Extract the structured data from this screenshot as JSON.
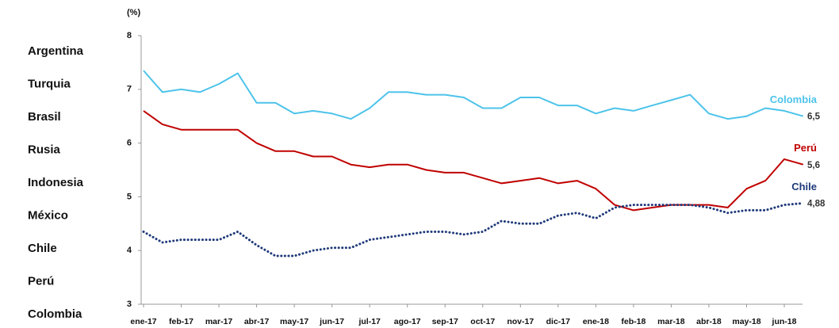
{
  "chart_data": {
    "type": "line",
    "y_axis_label": "(%)",
    "side_labels": [
      "Argentina",
      "Turquia",
      "Brasil",
      "Rusia",
      "Indonesia",
      "México",
      "Chile",
      "Perú",
      "Colombia"
    ],
    "categories": [
      "ene-17",
      null,
      "feb-17",
      null,
      "mar-17",
      null,
      "abr-17",
      null,
      "may-17",
      null,
      "jun-17",
      null,
      "jul-17",
      null,
      "ago-17",
      null,
      "sep-17",
      null,
      "oct-17",
      null,
      "nov-17",
      null,
      "dic-17",
      null,
      "ene-18",
      null,
      "feb-18",
      null,
      "mar-18",
      null,
      "abr-18",
      null,
      "may-18",
      null,
      "jun-18",
      null
    ],
    "ylim": [
      3,
      8
    ],
    "yticks": [
      3,
      4,
      5,
      6,
      7,
      8
    ],
    "series": [
      {
        "name": "Colombia",
        "color": "#4dc3ea",
        "style": "solid",
        "value_label": "6,5",
        "values": [
          7.35,
          6.95,
          7.0,
          6.95,
          7.1,
          7.3,
          6.75,
          6.75,
          6.55,
          6.6,
          6.55,
          6.45,
          6.65,
          6.95,
          6.95,
          6.9,
          6.9,
          6.85,
          6.65,
          6.65,
          6.85,
          6.85,
          6.7,
          6.7,
          6.55,
          6.65,
          6.6,
          6.7,
          6.8,
          6.9,
          6.55,
          6.45,
          6.5,
          6.65,
          6.6,
          6.5
        ]
      },
      {
        "name": "Perú",
        "color": "#c00000",
        "style": "solid",
        "value_label": "5,6",
        "values": [
          6.6,
          6.35,
          6.25,
          6.25,
          6.25,
          6.25,
          6.0,
          5.85,
          5.85,
          5.75,
          5.75,
          5.6,
          5.55,
          5.6,
          5.6,
          5.5,
          5.45,
          5.45,
          5.35,
          5.25,
          5.3,
          5.35,
          5.25,
          5.3,
          5.15,
          4.85,
          4.75,
          4.8,
          4.85,
          4.85,
          4.85,
          4.8,
          5.15,
          5.3,
          5.7,
          5.6
        ]
      },
      {
        "name": "Chile",
        "color": "#1f3a7a",
        "style": "dotted",
        "value_label": "4,88",
        "values": [
          4.35,
          4.15,
          4.2,
          4.2,
          4.2,
          4.35,
          4.1,
          3.9,
          3.9,
          4.0,
          4.05,
          4.05,
          4.2,
          4.25,
          4.3,
          4.35,
          4.35,
          4.3,
          4.35,
          4.55,
          4.5,
          4.5,
          4.65,
          4.7,
          4.6,
          4.8,
          4.85,
          4.85,
          4.85,
          4.85,
          4.8,
          4.7,
          4.75,
          4.75,
          4.85,
          4.88
        ]
      }
    ]
  }
}
